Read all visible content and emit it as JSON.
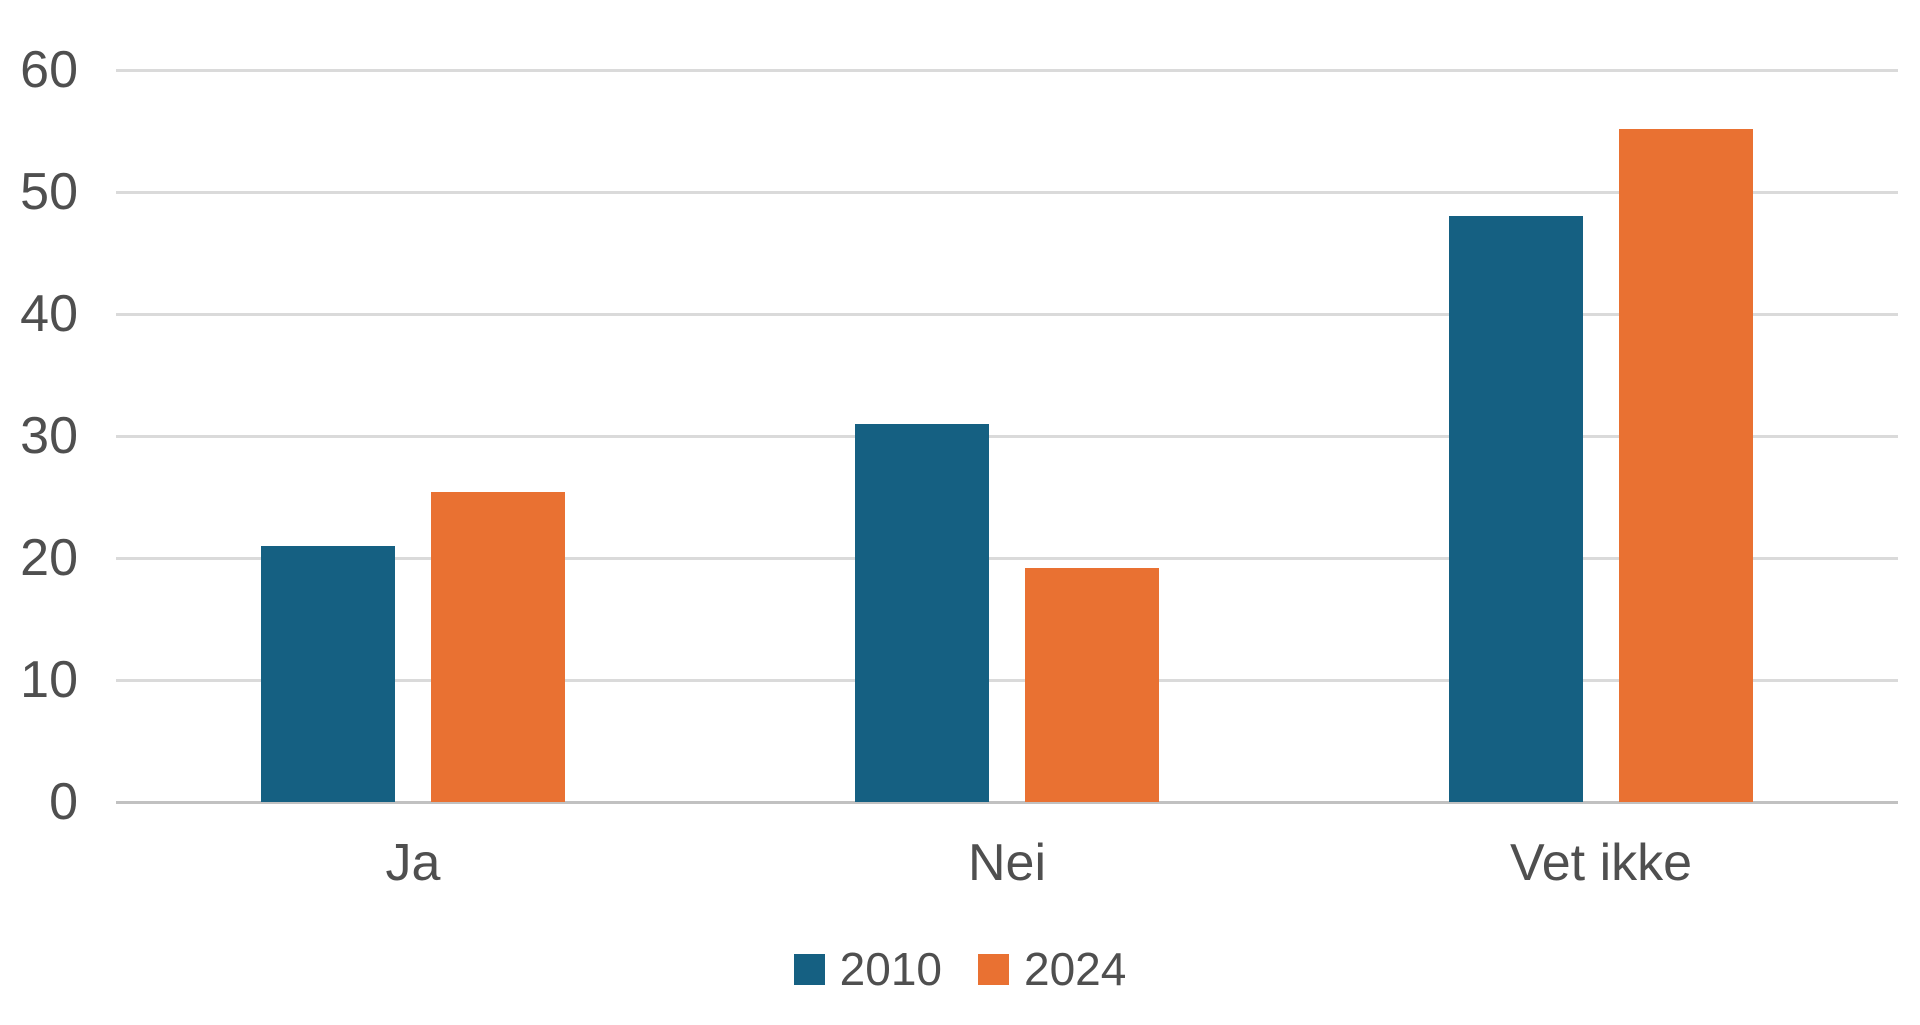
{
  "chart_data": {
    "type": "bar",
    "categories": [
      "Ja",
      "Nei",
      "Vet ikke"
    ],
    "series": [
      {
        "name": "2010",
        "color": "#156082",
        "values": [
          21,
          31,
          48
        ]
      },
      {
        "name": "2024",
        "color": "#E97132",
        "values": [
          25.4,
          19.2,
          55.2
        ]
      }
    ],
    "title": "",
    "xlabel": "",
    "ylabel": "",
    "ylim": [
      0,
      60
    ],
    "yticks": [
      0,
      10,
      20,
      30,
      40,
      50,
      60
    ],
    "grid": "horizontal",
    "legend_position": "bottom-center"
  },
  "colors": {
    "gridline": "#DADADA",
    "axis_line": "#C1C1C1",
    "label_text": "#4f4f4f",
    "background": "#FFFFFF",
    "series_2010": "#156082",
    "series_2024": "#E97132"
  }
}
